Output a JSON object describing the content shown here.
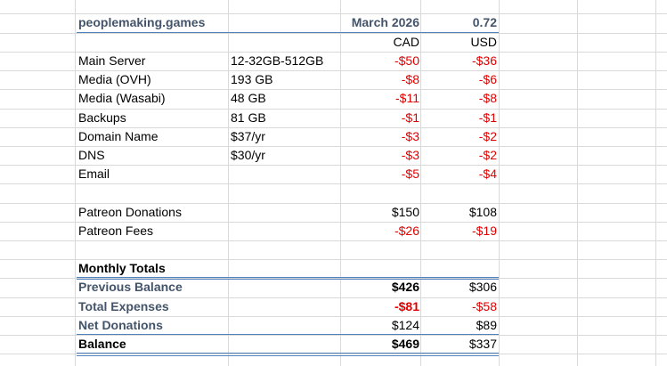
{
  "header": {
    "site": "peoplemaking.games",
    "period": "March 2026",
    "rate": "0.72",
    "currency_cad": "CAD",
    "currency_usd": "USD"
  },
  "expenses": [
    {
      "label": "Main Server",
      "detail": "12-32GB-512GB",
      "cad": "-$50",
      "usd": "-$36"
    },
    {
      "label": "Media (OVH)",
      "detail": "193 GB",
      "cad": "-$8",
      "usd": "-$6"
    },
    {
      "label": "Media (Wasabi)",
      "detail": "48 GB",
      "cad": "-$11",
      "usd": "-$8"
    },
    {
      "label": "Backups",
      "detail": "81 GB",
      "cad": "-$1",
      "usd": "-$1"
    },
    {
      "label": "Domain Name",
      "detail": "$37/yr",
      "cad": "-$3",
      "usd": "-$2"
    },
    {
      "label": "DNS",
      "detail": "$30/yr",
      "cad": "-$3",
      "usd": "-$2"
    },
    {
      "label": "Email",
      "detail": "",
      "cad": "-$5",
      "usd": "-$4"
    }
  ],
  "income": [
    {
      "label": "Patreon Donations",
      "cad": "$150",
      "usd": "$108"
    },
    {
      "label": "Patreon Fees",
      "cad": "-$26",
      "usd": "-$19"
    }
  ],
  "totals": {
    "heading": "Monthly Totals",
    "previous_label": "Previous Balance",
    "previous_cad": "$426",
    "previous_usd": "$306",
    "expenses_label": "Total Expenses",
    "expenses_cad": "-$81",
    "expenses_usd": "-$58",
    "net_label": "Net Donations",
    "net_cad": "$124",
    "net_usd": "$89",
    "balance_label": "Balance",
    "balance_cad": "$469",
    "balance_usd": "$337"
  },
  "colors": {
    "negative": "#e00000",
    "header_text": "#44546a",
    "accent_rule": "#4f81bd",
    "gridline": "#d9d9d9"
  }
}
